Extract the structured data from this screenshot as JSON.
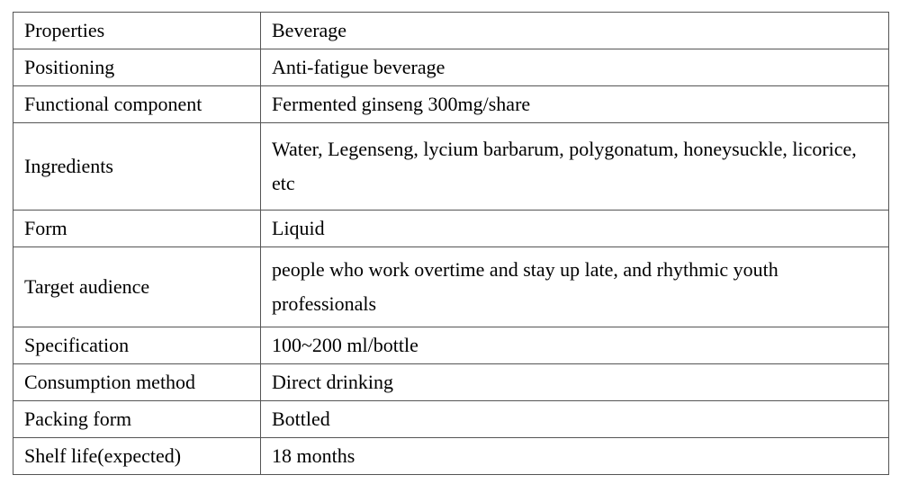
{
  "table": {
    "rows": [
      {
        "property": "Properties",
        "value": "Beverage"
      },
      {
        "property": "Positioning",
        "value": "Anti-fatigue beverage"
      },
      {
        "property": "Functional component",
        "value": "Fermented ginseng 300mg/share"
      },
      {
        "property": "Ingredients",
        "value": "Water, Legenseng, lycium barbarum, polygonatum, honeysuckle, licorice, etc"
      },
      {
        "property": "Form",
        "value": "Liquid"
      },
      {
        "property": "Target audience",
        "value": "people who work overtime and stay up late, and rhythmic youth professionals"
      },
      {
        "property": "Specification",
        "value": "100~200 ml/bottle"
      },
      {
        "property": "Consumption method",
        "value": "Direct drinking"
      },
      {
        "property": "Packing form",
        "value": "Bottled"
      },
      {
        "property": "Shelf life(expected)",
        "value": "18 months"
      }
    ]
  }
}
